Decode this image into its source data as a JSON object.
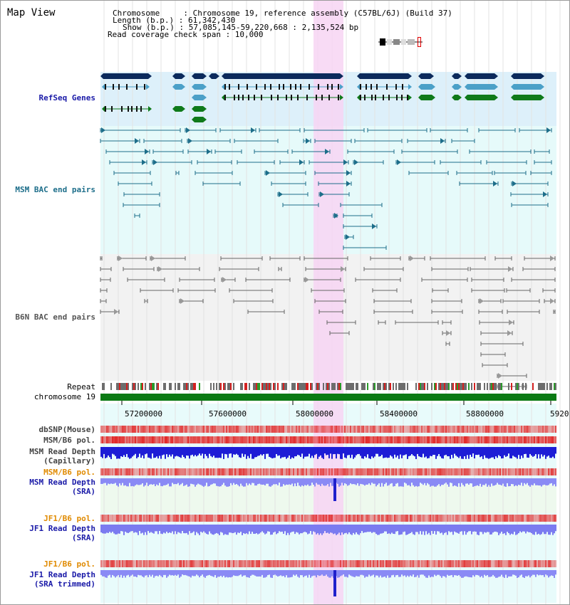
{
  "header": {
    "title": "Map View",
    "lines": [
      "Chromosome     : Chromosome 19, reference assembly (C57BL/6J) (Build 37)",
      "Length (b.p.) : 61,342,430",
      "Show (b.p.) : 57,085,145-59,220,668 : 2,135,524 bp",
      "Read coverage check span : 10,000"
    ]
  },
  "tracks": {
    "refseq": "RefSeq Genes",
    "msm_bac": "MSM BAC end pairs",
    "b6n_bac": "B6N BAC end pairs",
    "repeat": "Repeat",
    "chromosome": "chromosome 19",
    "dbsnp": "dbSNP(Mouse)",
    "msm_pol": "MSM/B6 pol.",
    "msm_depth_cap_1": "MSM Read Depth",
    "msm_depth_cap_2": "(Capillary)",
    "msm_pol_sra": "MSM/B6 pol.",
    "msm_depth_sra_1": "MSM Read Depth",
    "msm_depth_sra_2": "(SRA)",
    "jf1_pol_1": "JF1/B6 pol.",
    "jf1_depth_1": "JF1 Read Depth",
    "jf1_depth_1b": "(SRA)",
    "jf1_pol_2": "JF1/B6 pol.",
    "jf1_depth_2": "JF1 Read Depth",
    "jf1_depth_2b": "(SRA trimmed)"
  },
  "axis": {
    "ticks": [
      "57200000",
      "57600000",
      "58000000",
      "58400000",
      "58800000",
      "5920"
    ]
  },
  "colors": {
    "refseq_bg": "#ddf0fa",
    "msm_bac_bg": "#e6fafa",
    "b6n_bac_bg": "#f2f2f2",
    "highlight": "#f7d5f3",
    "gene_dark": "#0b2a5c",
    "gene_mid": "#4ba0c8",
    "gene_green": "#0f7a1a",
    "msm_line": "#1d6e8a",
    "b6n_line": "#666666",
    "chrom_bar": "#0b7a14",
    "label_blue": "#1a1aa8",
    "label_orange": "#e08a00",
    "label_gray": "#444444"
  }
}
